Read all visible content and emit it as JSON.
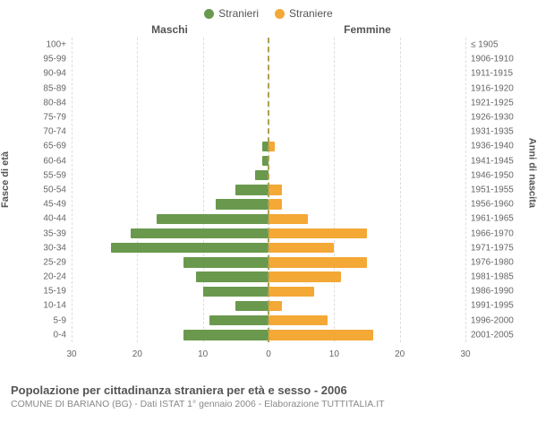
{
  "legend": {
    "male": {
      "label": "Stranieri",
      "color": "#6a994e"
    },
    "female": {
      "label": "Straniere",
      "color": "#f4a836"
    }
  },
  "headers": {
    "left": "Maschi",
    "right": "Femmine"
  },
  "axis": {
    "left_title": "Fasce di età",
    "right_title": "Anni di nascita",
    "xmax": 30,
    "xticks": [
      30,
      20,
      10,
      0,
      10,
      20,
      30
    ],
    "grid_positions_pct": [
      0,
      16.67,
      33.33,
      50,
      66.67,
      83.33,
      100
    ],
    "grid_color": "#dddddd",
    "centerline_color": "#b0a050"
  },
  "rows": [
    {
      "age": "100+",
      "birth": "≤ 1905",
      "m": 0,
      "f": 0
    },
    {
      "age": "95-99",
      "birth": "1906-1910",
      "m": 0,
      "f": 0
    },
    {
      "age": "90-94",
      "birth": "1911-1915",
      "m": 0,
      "f": 0
    },
    {
      "age": "85-89",
      "birth": "1916-1920",
      "m": 0,
      "f": 0
    },
    {
      "age": "80-84",
      "birth": "1921-1925",
      "m": 0,
      "f": 0
    },
    {
      "age": "75-79",
      "birth": "1926-1930",
      "m": 0,
      "f": 0
    },
    {
      "age": "70-74",
      "birth": "1931-1935",
      "m": 0,
      "f": 0
    },
    {
      "age": "65-69",
      "birth": "1936-1940",
      "m": 1,
      "f": 1
    },
    {
      "age": "60-64",
      "birth": "1941-1945",
      "m": 1,
      "f": 0
    },
    {
      "age": "55-59",
      "birth": "1946-1950",
      "m": 2,
      "f": 0
    },
    {
      "age": "50-54",
      "birth": "1951-1955",
      "m": 5,
      "f": 2
    },
    {
      "age": "45-49",
      "birth": "1956-1960",
      "m": 8,
      "f": 2
    },
    {
      "age": "40-44",
      "birth": "1961-1965",
      "m": 17,
      "f": 6
    },
    {
      "age": "35-39",
      "birth": "1966-1970",
      "m": 21,
      "f": 15
    },
    {
      "age": "30-34",
      "birth": "1971-1975",
      "m": 24,
      "f": 10
    },
    {
      "age": "25-29",
      "birth": "1976-1980",
      "m": 13,
      "f": 15
    },
    {
      "age": "20-24",
      "birth": "1981-1985",
      "m": 11,
      "f": 11
    },
    {
      "age": "15-19",
      "birth": "1986-1990",
      "m": 10,
      "f": 7
    },
    {
      "age": "10-14",
      "birth": "1991-1995",
      "m": 5,
      "f": 2
    },
    {
      "age": "5-9",
      "birth": "1996-2000",
      "m": 9,
      "f": 9
    },
    {
      "age": "0-4",
      "birth": "2001-2005",
      "m": 13,
      "f": 16
    }
  ],
  "footer": {
    "title": "Popolazione per cittadinanza straniera per età e sesso - 2006",
    "subtitle": "COMUNE DI BARIANO (BG) - Dati ISTAT 1° gennaio 2006 - Elaborazione TUTTITALIA.IT"
  },
  "style": {
    "background": "#ffffff",
    "text_color": "#555555",
    "tick_color": "#666666",
    "font_family": "Arial, Helvetica, sans-serif",
    "label_fontsize": 10,
    "title_fontsize": 13
  }
}
